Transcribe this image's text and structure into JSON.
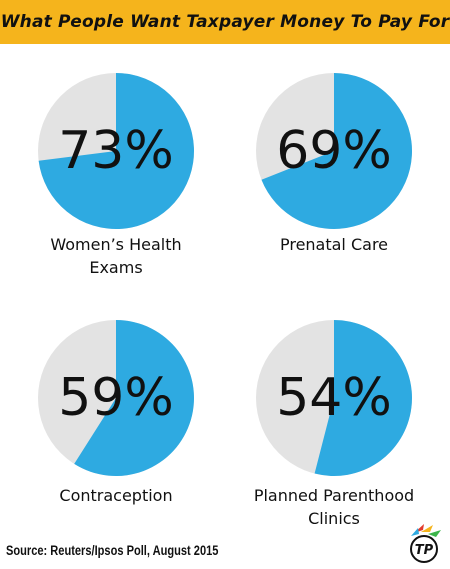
{
  "title": "What People Want Taxpayer Money To Pay For",
  "source": "Source: Reuters/Ipsos Poll, August 2015",
  "colors": {
    "title_bg": "#f5b41c",
    "filled": "#2eaae1",
    "remainder": "#e3e3e3",
    "text": "#111111"
  },
  "chart_data": [
    {
      "type": "pie",
      "category": [
        "Women’s Health",
        "Exams"
      ],
      "value": 73,
      "value_label": "73%",
      "series": [
        {
          "name": "",
          "values": [
            73,
            27
          ]
        }
      ]
    },
    {
      "type": "pie",
      "category": [
        "Prenatal Care"
      ],
      "value": 69,
      "value_label": "69%",
      "series": [
        {
          "name": "",
          "values": [
            69,
            31
          ]
        }
      ]
    },
    {
      "type": "pie",
      "category": [
        "Contraception"
      ],
      "value": 59,
      "value_label": "59%",
      "series": [
        {
          "name": "",
          "values": [
            59,
            41
          ]
        }
      ]
    },
    {
      "type": "pie",
      "category": [
        "Planned Parenthood",
        "Clinics"
      ],
      "value": 54,
      "value_label": "54%",
      "series": [
        {
          "name": "",
          "values": [
            54,
            46
          ]
        }
      ]
    }
  ],
  "logo": {
    "icon": "tp-logo-icon",
    "text": "TP"
  }
}
